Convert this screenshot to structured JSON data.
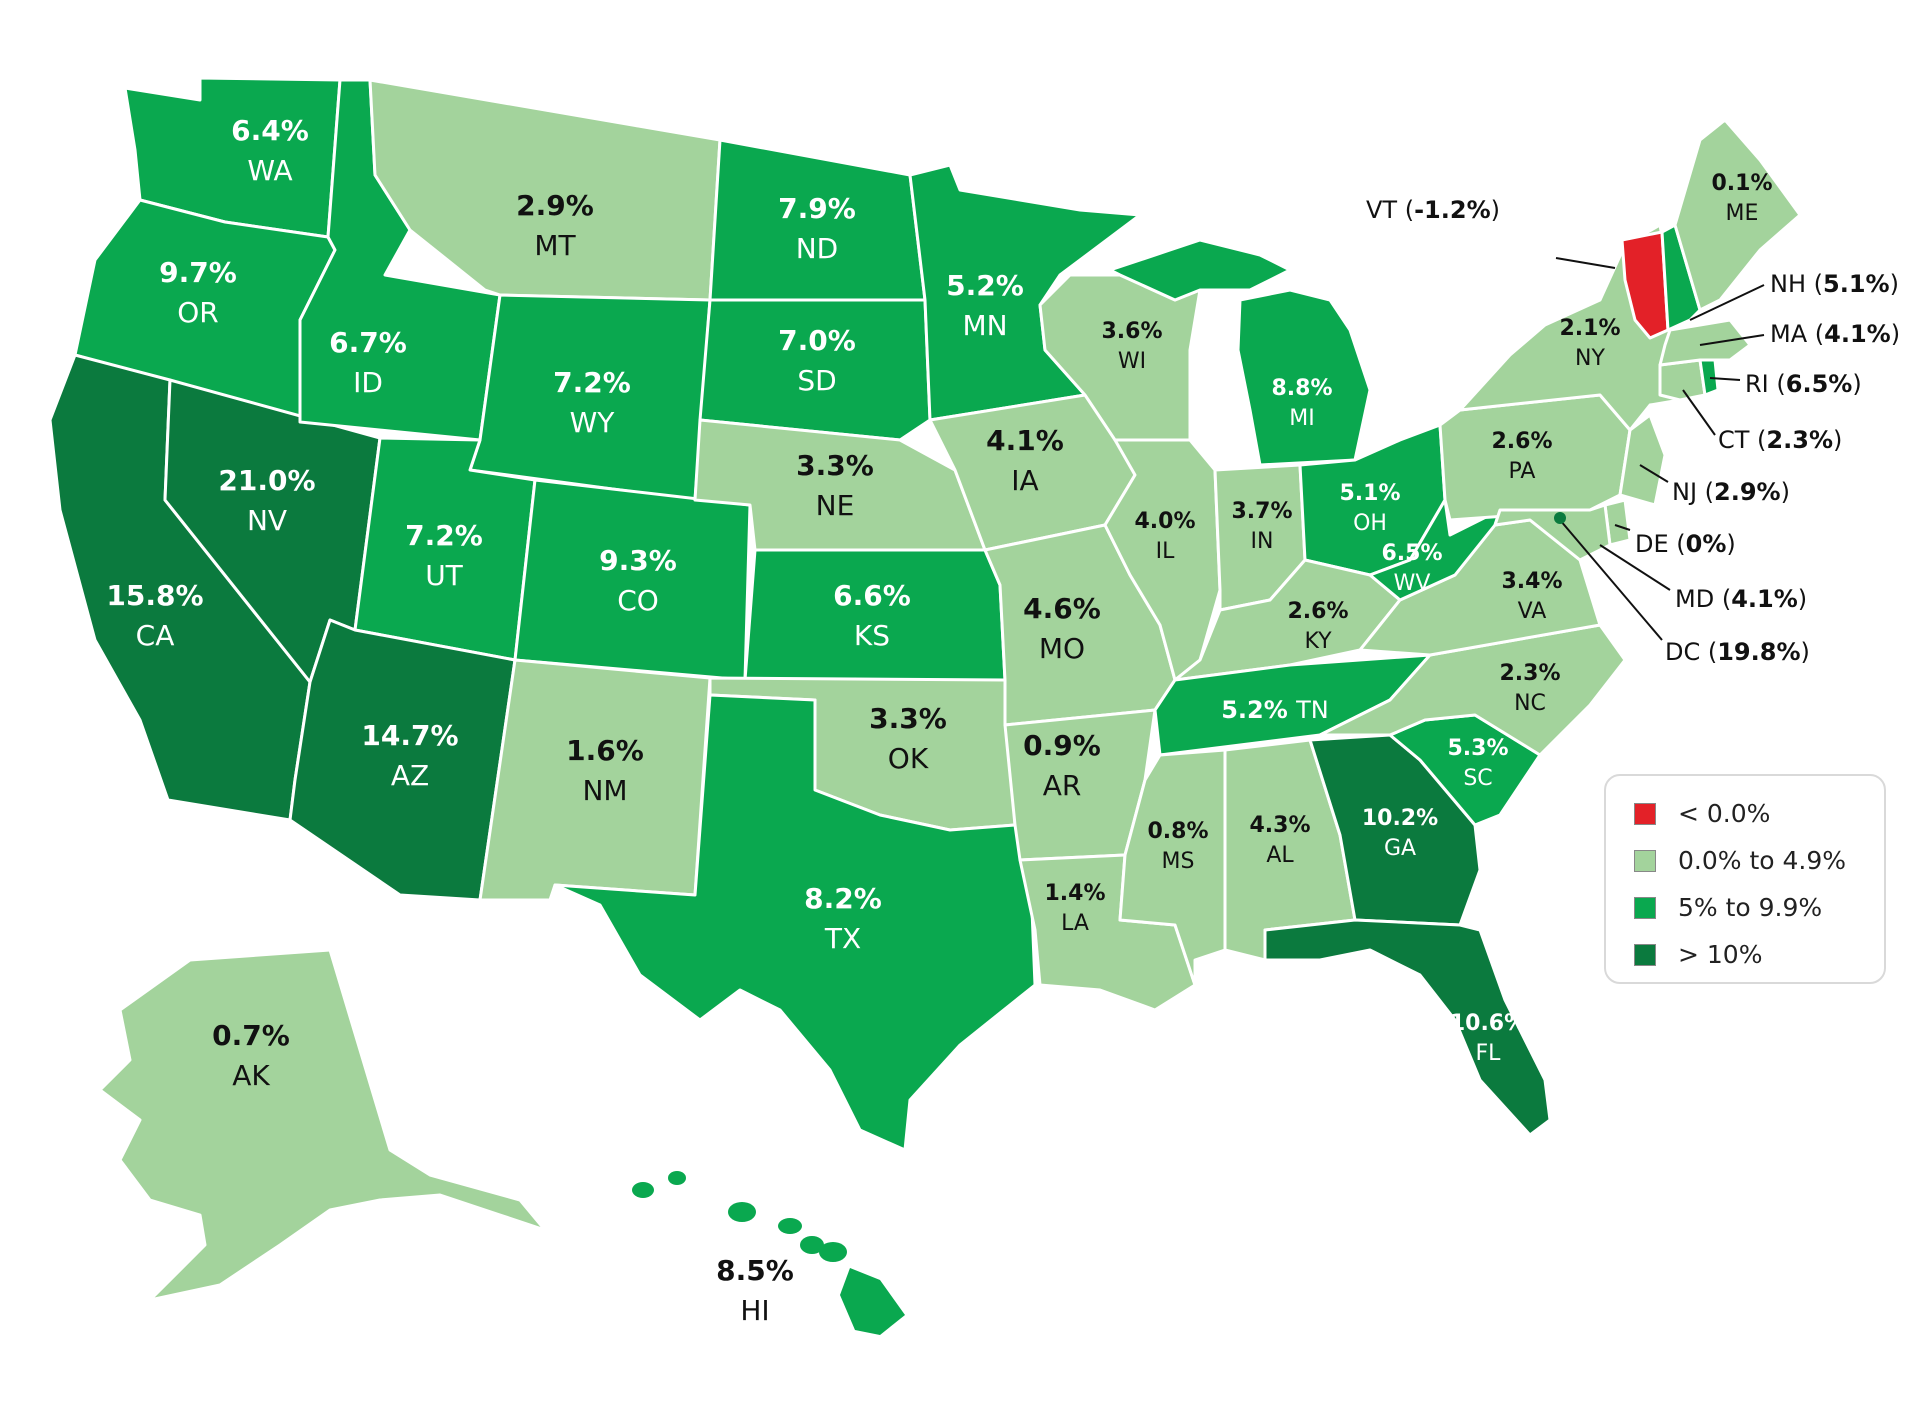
{
  "colors": {
    "negative": "#e32128",
    "low": "#a3d39c",
    "mid": "#0aa84f",
    "high": "#0b7a3e"
  },
  "legend": [
    {
      "label": "< 0.0%",
      "color": "#e32128"
    },
    {
      "label": "0.0% to 4.9%",
      "color": "#a3d39c"
    },
    {
      "label": "5% to 9.9%",
      "color": "#0aa84f"
    },
    {
      "label": "> 10%",
      "color": "#0b7a3e"
    }
  ],
  "states": {
    "WA": {
      "abbr": "WA",
      "value": "6.4%"
    },
    "OR": {
      "abbr": "OR",
      "value": "9.7%"
    },
    "CA": {
      "abbr": "CA",
      "value": "15.8%"
    },
    "NV": {
      "abbr": "NV",
      "value": "21.0%"
    },
    "ID": {
      "abbr": "ID",
      "value": "6.7%"
    },
    "MT": {
      "abbr": "MT",
      "value": "2.9%"
    },
    "WY": {
      "abbr": "WY",
      "value": "7.2%"
    },
    "UT": {
      "abbr": "UT",
      "value": "7.2%"
    },
    "AZ": {
      "abbr": "AZ",
      "value": "14.7%"
    },
    "CO": {
      "abbr": "CO",
      "value": "9.3%"
    },
    "NM": {
      "abbr": "NM",
      "value": "1.6%"
    },
    "ND": {
      "abbr": "ND",
      "value": "7.9%"
    },
    "SD": {
      "abbr": "SD",
      "value": "7.0%"
    },
    "NE": {
      "abbr": "NE",
      "value": "3.3%"
    },
    "KS": {
      "abbr": "KS",
      "value": "6.6%"
    },
    "OK": {
      "abbr": "OK",
      "value": "3.3%"
    },
    "TX": {
      "abbr": "TX",
      "value": "8.2%"
    },
    "MN": {
      "abbr": "MN",
      "value": "5.2%"
    },
    "IA": {
      "abbr": "IA",
      "value": "4.1%"
    },
    "MO": {
      "abbr": "MO",
      "value": "4.6%"
    },
    "AR": {
      "abbr": "AR",
      "value": "0.9%"
    },
    "LA": {
      "abbr": "LA",
      "value": "1.4%"
    },
    "WI": {
      "abbr": "WI",
      "value": "3.6%"
    },
    "IL": {
      "abbr": "IL",
      "value": "4.0%"
    },
    "MI": {
      "abbr": "MI",
      "value": "8.8%"
    },
    "IN": {
      "abbr": "IN",
      "value": "3.7%"
    },
    "OH": {
      "abbr": "OH",
      "value": "5.1%"
    },
    "KY": {
      "abbr": "KY",
      "value": "2.6%"
    },
    "TN": {
      "abbr": "TN",
      "value": "5.2%"
    },
    "MS": {
      "abbr": "MS",
      "value": "0.8%"
    },
    "AL": {
      "abbr": "AL",
      "value": "4.3%"
    },
    "GA": {
      "abbr": "GA",
      "value": "10.2%"
    },
    "FL": {
      "abbr": "FL",
      "value": "10.6%"
    },
    "SC": {
      "abbr": "SC",
      "value": "5.3%"
    },
    "NC": {
      "abbr": "NC",
      "value": "2.3%"
    },
    "VA": {
      "abbr": "VA",
      "value": "3.4%"
    },
    "WV": {
      "abbr": "WV",
      "value": "6.5%"
    },
    "PA": {
      "abbr": "PA",
      "value": "2.6%"
    },
    "NY": {
      "abbr": "NY",
      "value": "2.1%"
    },
    "ME": {
      "abbr": "ME",
      "value": "0.1%"
    },
    "AK": {
      "abbr": "AK",
      "value": "0.7%"
    },
    "HI": {
      "abbr": "HI",
      "value": "8.5%"
    }
  },
  "callouts": {
    "VT": {
      "abbr": "VT",
      "value": "-1.2%"
    },
    "NH": {
      "abbr": "NH",
      "value": "5.1%"
    },
    "MA": {
      "abbr": "MA",
      "value": "4.1%"
    },
    "RI": {
      "abbr": "RI",
      "value": "6.5%"
    },
    "CT": {
      "abbr": "CT",
      "value": "2.3%"
    },
    "NJ": {
      "abbr": "NJ",
      "value": "2.9%"
    },
    "DE": {
      "abbr": "DE",
      "value": "0%"
    },
    "MD": {
      "abbr": "MD",
      "value": "4.1%"
    },
    "DC": {
      "abbr": "DC",
      "value": "19.8%"
    }
  }
}
